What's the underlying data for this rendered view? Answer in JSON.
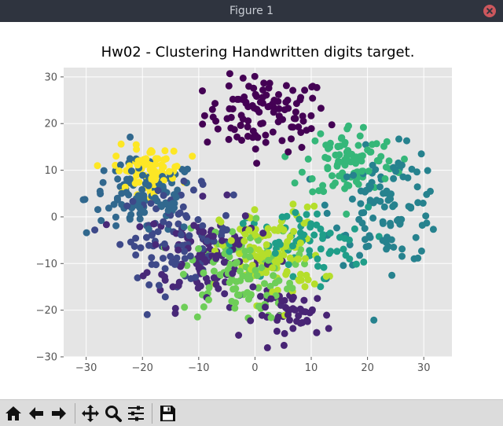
{
  "window": {
    "title": "Figure 1"
  },
  "toolbar": {
    "buttons": [
      {
        "icon": "home-icon",
        "name": "home-button"
      },
      {
        "icon": "arrow-left-icon",
        "name": "back-button"
      },
      {
        "icon": "arrow-right-icon",
        "name": "forward-button"
      },
      {
        "icon": "move-icon",
        "name": "pan-button"
      },
      {
        "icon": "magnifier-icon",
        "name": "zoom-button"
      },
      {
        "icon": "sliders-icon",
        "name": "subplots-button"
      },
      {
        "icon": "floppy-disk-icon",
        "name": "save-button"
      }
    ]
  },
  "chart_data": {
    "type": "scatter",
    "title": "Hw02 - Clustering Handwritten digits target.",
    "xlabel": "",
    "ylabel": "",
    "xlim": [
      -34,
      35
    ],
    "ylim": [
      -30,
      32
    ],
    "xticks": [
      -30,
      -20,
      -10,
      0,
      10,
      20,
      30
    ],
    "yticks": [
      -30,
      -20,
      -10,
      0,
      10,
      20,
      30
    ],
    "xtick_labels": [
      "−30",
      "−20",
      "−10",
      "0",
      "10",
      "20",
      "30"
    ],
    "ytick_labels": [
      "−30",
      "−20",
      "−10",
      "0",
      "10",
      "20",
      "30"
    ],
    "grid": true,
    "background": "#e5e5e5",
    "colormap": "viridis",
    "clusters": [
      {
        "label": 0,
        "color": "#440154",
        "center": [
          2,
          22
        ],
        "spread": [
          5.5,
          4
        ],
        "n": 110
      },
      {
        "label": 1,
        "color": "#482878",
        "center": [
          -9,
          -8
        ],
        "spread": [
          5,
          5.5
        ],
        "n": 120
      },
      {
        "label": 2,
        "color": "#3e4989",
        "center": [
          -14,
          -4
        ],
        "spread": [
          5,
          5
        ],
        "n": 90
      },
      {
        "label": 3,
        "color": "#31688e",
        "center": [
          -20,
          4
        ],
        "spread": [
          5,
          4
        ],
        "n": 110
      },
      {
        "label": 4,
        "color": "#26828e",
        "center": [
          24,
          2
        ],
        "spread": [
          5,
          6
        ],
        "n": 110
      },
      {
        "label": 5,
        "color": "#1f9e89",
        "center": [
          8,
          -6
        ],
        "spread": [
          6,
          4
        ],
        "n": 70
      },
      {
        "label": 6,
        "color": "#35b779",
        "center": [
          17,
          12
        ],
        "spread": [
          4,
          4
        ],
        "n": 100
      },
      {
        "label": 7,
        "color": "#6ece58",
        "center": [
          -3,
          -12
        ],
        "spread": [
          5,
          5
        ],
        "n": 110
      },
      {
        "label": 8,
        "color": "#b5de2b",
        "center": [
          3,
          -8
        ],
        "spread": [
          4.5,
          5
        ],
        "n": 120
      },
      {
        "label": 9,
        "color": "#fde725",
        "center": [
          -19,
          10
        ],
        "spread": [
          3,
          2.5
        ],
        "n": 80
      },
      {
        "label": 10,
        "color": "#482475",
        "center": [
          7,
          -21
        ],
        "spread": [
          3.5,
          2.5
        ],
        "n": 50
      }
    ]
  }
}
